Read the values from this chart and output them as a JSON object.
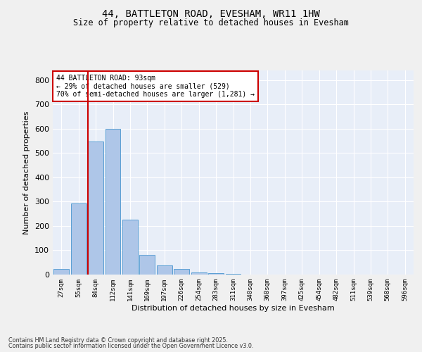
{
  "title_line1": "44, BATTLETON ROAD, EVESHAM, WR11 1HW",
  "title_line2": "Size of property relative to detached houses in Evesham",
  "xlabel": "Distribution of detached houses by size in Evesham",
  "ylabel": "Number of detached properties",
  "categories": [
    "27sqm",
    "55sqm",
    "84sqm",
    "112sqm",
    "141sqm",
    "169sqm",
    "197sqm",
    "226sqm",
    "254sqm",
    "283sqm",
    "311sqm",
    "340sqm",
    "368sqm",
    "397sqm",
    "425sqm",
    "454sqm",
    "482sqm",
    "511sqm",
    "539sqm",
    "568sqm",
    "596sqm"
  ],
  "values": [
    22,
    293,
    547,
    600,
    225,
    82,
    38,
    24,
    10,
    7,
    4,
    0,
    0,
    0,
    0,
    0,
    0,
    0,
    0,
    0,
    0
  ],
  "bar_color": "#aec6e8",
  "bar_edge_color": "#5a9fd4",
  "vline_color": "#cc0000",
  "vline_x_index": 1.55,
  "annotation_text": "44 BATTLETON ROAD: 93sqm\n← 29% of detached houses are smaller (529)\n70% of semi-detached houses are larger (1,281) →",
  "annotation_box_color": "#ffffff",
  "annotation_box_edge": "#cc0000",
  "ylim": [
    0,
    840
  ],
  "yticks": [
    0,
    100,
    200,
    300,
    400,
    500,
    600,
    700,
    800
  ],
  "bg_color": "#e8eef8",
  "fig_bg_color": "#f0f0f0",
  "footer_line1": "Contains HM Land Registry data © Crown copyright and database right 2025.",
  "footer_line2": "Contains public sector information licensed under the Open Government Licence v3.0."
}
